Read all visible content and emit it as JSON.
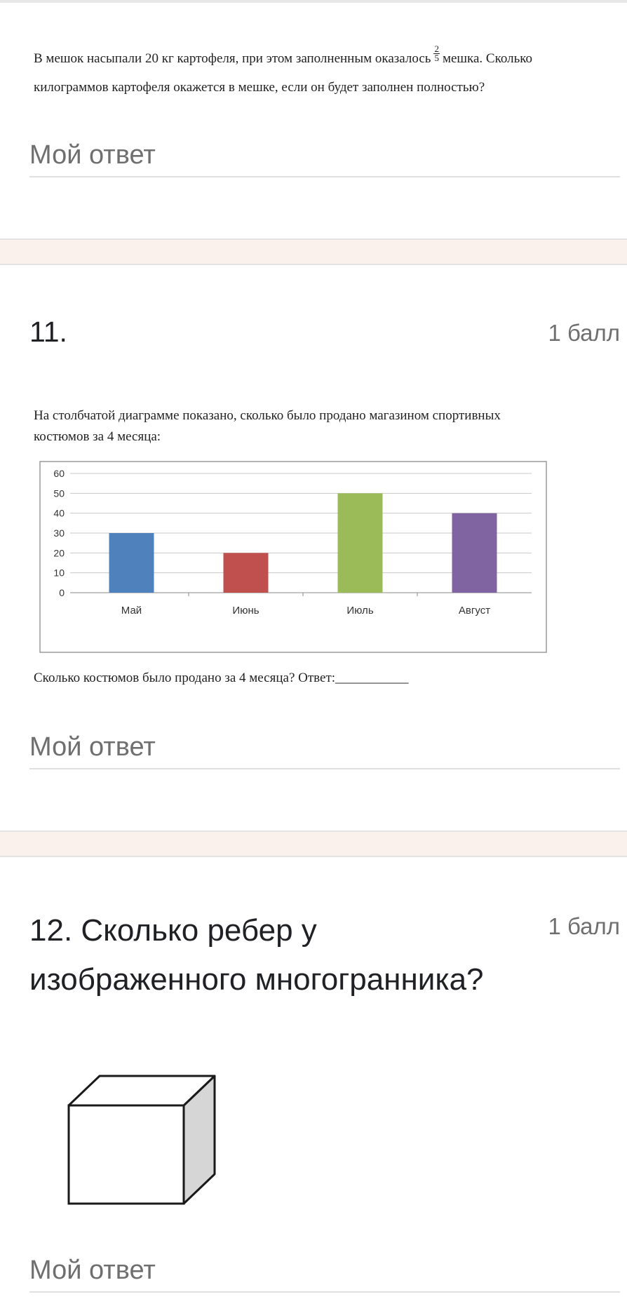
{
  "question10": {
    "text_part1": "В мешок насыпали 20 кг картофеля, при этом заполненным оказалось",
    "frac_num": "2",
    "frac_den": "5",
    "text_part2": "мешка. Сколько",
    "text_line2": "килограммов картофеля окажется в мешке, если он будет заполнен полностью?",
    "answer_placeholder": "Мой ответ"
  },
  "question11": {
    "number": "11.",
    "points": "1 балл",
    "text_line1": "На столбчатой диаграмме показано, сколько было продано магазином спортивных",
    "text_line2": "костюмов за 4 месяца:",
    "followup": "Сколько костюмов было продано за 4 месяца?  Ответ:___________",
    "answer_placeholder": "Мой ответ"
  },
  "question12": {
    "title_line1": "12. Сколько ребер у",
    "title_line2": "изображенного многогранника?",
    "points": "1 балл",
    "answer_placeholder": "Мой ответ"
  },
  "chart_data": {
    "type": "bar",
    "categories": [
      "Май",
      "Июнь",
      "Июль",
      "Август"
    ],
    "values": [
      30,
      20,
      50,
      40
    ],
    "colors": [
      "#4f81bd",
      "#c0504d",
      "#9bbb59",
      "#8064a2"
    ],
    "yticks": [
      0,
      10,
      20,
      30,
      40,
      50,
      60
    ],
    "ylim": [
      0,
      60
    ],
    "grid": true,
    "title": "",
    "xlabel": "",
    "ylabel": ""
  }
}
